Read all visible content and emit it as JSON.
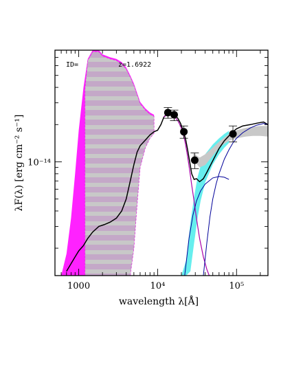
{
  "chart_data": {
    "type": "line",
    "title": "",
    "id_label": "ID=",
    "z_label": "z=1.6922",
    "xlabel": "wavelength λ[Å]",
    "ylabel": "λF(λ) [erg cm⁻² s⁻¹]",
    "x_scale": "log",
    "y_scale": "log",
    "xlim": [
      500,
      250000
    ],
    "ylim": [
      1.2e-15,
      8e-14
    ],
    "x_ticks": [
      {
        "value": 1000,
        "label": "1000"
      },
      {
        "value": 10000,
        "label": "10⁴"
      },
      {
        "value": 100000,
        "label": "10⁵"
      }
    ],
    "y_ticks": [
      {
        "value": 1e-14,
        "label": "10⁻¹⁴"
      }
    ],
    "grid": false,
    "legend": "none",
    "colors": {
      "stellar_band": "#ff22ff",
      "stellar_band_hatch": "#c8c8c8",
      "sfr_band": "#c4a8c8",
      "dust_band": "#66eeee",
      "dust_band_far": "#c8c8c8",
      "total_model": "#000000",
      "component_model": "#000099",
      "stellar_model": "#aa00aa",
      "photometry": "#000000"
    },
    "series": [
      {
        "role": "photometry",
        "x": [
          13500,
          16200,
          21500,
          29500,
          90000
        ],
        "y": [
          2.5e-14,
          2.4e-14,
          1.75e-14,
          1.03e-14,
          1.68e-14
        ],
        "yerr_lo": [
          2.25e-14,
          2.15e-14,
          1.55e-14,
          8.8e-15,
          1.45e-14
        ],
        "yerr_hi": [
          2.75e-14,
          2.62e-14,
          1.95e-14,
          1.18e-14,
          1.95e-14
        ]
      },
      {
        "role": "total-model",
        "x": [
          700,
          800,
          900,
          1000,
          1150,
          1300,
          1500,
          1800,
          2100,
          2500,
          3000,
          3500,
          4000,
          4500,
          5000,
          5500,
          6000,
          7000,
          8000,
          9000,
          10000,
          11000,
          12000,
          13500,
          15000,
          16500,
          18000,
          19500,
          21000,
          22500,
          24000,
          25500,
          27000,
          29000,
          31000,
          34000,
          38000,
          42000,
          50000,
          60000,
          70000,
          80000,
          90000,
          100000,
          120000,
          150000,
          180000,
          220000,
          250000
        ],
        "y": [
          1.3e-15,
          1.5e-15,
          1.7e-15,
          1.9e-15,
          2.1e-15,
          2.4e-15,
          2.7e-15,
          3e-15,
          3.1e-15,
          3.25e-15,
          3.5e-15,
          4e-15,
          5e-15,
          7e-15,
          9.5e-15,
          1.2e-14,
          1.35e-14,
          1.5e-14,
          1.65e-14,
          1.75e-14,
          1.8e-14,
          2e-14,
          2.3e-14,
          2.5e-14,
          2.45e-14,
          2.38e-14,
          2.25e-14,
          2.05e-14,
          1.8e-14,
          1.55e-14,
          1.25e-14,
          1e-14,
          8e-15,
          7.2e-15,
          7.3e-15,
          6.9e-15,
          7.3e-15,
          8.2e-15,
          1.02e-14,
          1.28e-14,
          1.48e-14,
          1.62e-14,
          1.75e-14,
          1.85e-14,
          1.95e-14,
          2e-14,
          2.05e-14,
          2.1e-14,
          2e-14
        ]
      },
      {
        "role": "stellar-model",
        "x": [
          12000,
          13500,
          15000,
          16500,
          18000,
          19500,
          21000,
          22500,
          24000,
          25500,
          27000,
          29000,
          31000,
          34000,
          38000,
          42000,
          45000
        ],
        "y": [
          2.3e-14,
          2.45e-14,
          2.4e-14,
          2.3e-14,
          2.15e-14,
          1.95e-14,
          1.7e-14,
          1.4e-14,
          1.1e-14,
          8.5e-15,
          6.5e-15,
          4.8e-15,
          3.5e-15,
          2.4e-15,
          1.7e-15,
          1.35e-15,
          1.2e-15
        ]
      },
      {
        "role": "dust-model",
        "x": [
          38000,
          42000,
          46000,
          50000,
          55000,
          60000,
          70000,
          80000,
          90000,
          100000,
          120000,
          150000,
          180000,
          220000,
          250000
        ],
        "y": [
          1.2e-15,
          2.2e-15,
          3.6e-15,
          5e-15,
          6.6e-15,
          8e-15,
          1.05e-14,
          1.25e-14,
          1.42e-14,
          1.55e-14,
          1.72e-14,
          1.88e-14,
          1.98e-14,
          2.04e-14,
          2e-14
        ]
      },
      {
        "role": "agn-model",
        "x": [
          22000,
          25000,
          28000,
          31000,
          35000,
          40000,
          50000,
          60000,
          70000,
          80000
        ],
        "y": [
          1.2e-15,
          2.4e-15,
          3.7e-15,
          4.8e-15,
          5.8e-15,
          6.6e-15,
          7.4e-15,
          7.6e-15,
          7.5e-15,
          7.2e-15
        ]
      }
    ],
    "bands": [
      {
        "role": "stellar-uncertainty-magenta",
        "x": [
          600,
          700,
          800,
          900,
          1000,
          1150,
          1300,
          1500,
          1800,
          2000,
          2500,
          3000,
          3500,
          4000,
          4500,
          5000,
          5500,
          6000,
          7000,
          8000,
          9000
        ],
        "lo": [
          1.2e-15,
          1.2e-15,
          1.2e-15,
          1.2e-15,
          1.2e-15,
          1.2e-15,
          1.2e-15,
          1.2e-15,
          1.2e-15,
          1.2e-15,
          1.2e-15,
          1.2e-15,
          1.2e-15,
          1.2e-15,
          1.2e-15,
          2e-15,
          4.5e-15,
          9e-15,
          1.3e-14,
          1.55e-14,
          1.7e-14
        ],
        "hi": [
          1.2e-15,
          1.8e-15,
          3.5e-15,
          8e-15,
          1.8e-14,
          4e-14,
          6.8e-14,
          8e-14,
          8e-14,
          7.4e-14,
          7e-14,
          6.8e-14,
          6.4e-14,
          5.8e-14,
          5e-14,
          4.3e-14,
          3.6e-14,
          3.05e-14,
          2.7e-14,
          2.5e-14,
          2.4e-14
        ]
      },
      {
        "role": "dust-uncertainty-cyan",
        "x": [
          20000,
          23000,
          26000,
          29000,
          32000,
          35000,
          40000,
          50000,
          60000,
          70000,
          80000
        ],
        "lo": [
          1.2e-15,
          1.2e-15,
          1.3e-15,
          2.2e-15,
          3.5e-15,
          4.8e-15,
          6.8e-15,
          9.5e-15,
          1.15e-14,
          1.3e-14,
          1.42e-14
        ],
        "hi": [
          1.2e-15,
          1.6e-15,
          3.2e-15,
          5.2e-15,
          7.5e-15,
          9.2e-15,
          1.15e-14,
          1.38e-14,
          1.55e-14,
          1.68e-14,
          1.78e-14
        ]
      },
      {
        "role": "fir-uncertainty-gray",
        "x": [
          28000,
          34000,
          40000,
          50000,
          60000,
          80000,
          100000,
          130000,
          160000,
          200000,
          250000
        ],
        "lo": [
          1.05e-14,
          9e-15,
          9.4e-15,
          1.12e-14,
          1.3e-14,
          1.48e-14,
          1.55e-14,
          1.6e-14,
          1.62e-14,
          1.62e-14,
          1.6e-14
        ],
        "hi": [
          1.18e-14,
          1.08e-14,
          1.15e-14,
          1.3e-14,
          1.45e-14,
          1.68e-14,
          1.8e-14,
          1.88e-14,
          1.92e-14,
          1.95e-14,
          1.95e-14
        ]
      }
    ]
  }
}
